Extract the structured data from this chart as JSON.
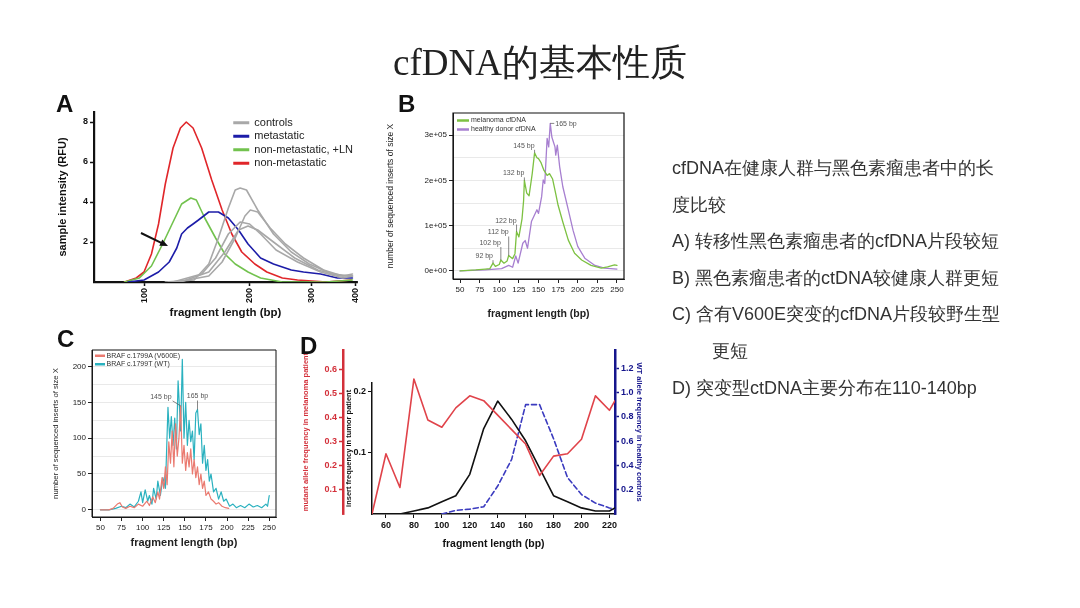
{
  "chart_data": [
    {
      "type": "other",
      "title": "cfDNA的基本性质"
    },
    {
      "type": "line",
      "title": "A",
      "xlabel": "fragment length (bp)",
      "ylabel": "sample intensity (RFU)",
      "log": "x",
      "xlim": [
        72,
        405
      ],
      "xticks": [
        100,
        200,
        300,
        400
      ],
      "ylim": [
        0,
        8.5
      ],
      "yticks": [
        2,
        4,
        6,
        8
      ],
      "legend": "top right",
      "series": [
        {
          "name": "controls",
          "color": "#a8a8a8",
          "x": [
            115,
            139,
            153,
            163,
            174,
            182,
            188,
            196,
            211,
            234,
            263,
            296,
            344,
            393
          ],
          "values": [
            0,
            0.1,
            0.9,
            2.2,
            3.7,
            4.6,
            4.7,
            4.6,
            3.6,
            2.4,
            1.5,
            0.9,
            0.4,
            0.3
          ]
        },
        {
          "color": "#a8a8a8",
          "x": [
            124,
            153,
            167,
            182,
            194,
            201,
            211,
            229,
            253,
            285,
            325,
            369,
            393
          ],
          "values": [
            0,
            0.3,
            1,
            2.2,
            3.3,
            3.6,
            3.5,
            2.7,
            1.9,
            1.2,
            0.6,
            0.3,
            0.4
          ]
        },
        {
          "color": "#a8a8a8",
          "x": [
            121,
            146,
            160,
            174,
            188,
            200,
            215,
            238,
            274,
            319,
            369,
            393
          ],
          "values": [
            0,
            0.4,
            1.2,
            2.4,
            3,
            2.9,
            2.4,
            1.6,
            1,
            0.5,
            0.2,
            0.3
          ]
        },
        {
          "color": "#a8a8a8",
          "x": [
            127,
            153,
            170,
            186,
            198,
            211,
            234,
            269,
            313,
            363,
            393
          ],
          "values": [
            0,
            0.5,
            1.5,
            2.6,
            2.8,
            2.6,
            2,
            1.2,
            0.6,
            0.3,
            0.3
          ]
        },
        {
          "name": "metastatic",
          "color": "#1c1ca8",
          "x": [
            90,
            100,
            110,
            118,
            124,
            128,
            133,
            138,
            143,
            153,
            163,
            174,
            186,
            198,
            215,
            234,
            263,
            285,
            319,
            356,
            393
          ],
          "values": [
            0,
            0.1,
            0.5,
            1,
            1.7,
            2.4,
            2.7,
            2.9,
            3.1,
            3.5,
            3.5,
            3.2,
            2.6,
            1.9,
            1.2,
            0.9,
            0.6,
            0.5,
            0.4,
            0.2,
            0.2
          ]
        },
        {
          "name": "non-metastatic, +LN",
          "color": "#72c24e",
          "x": [
            88,
            97,
            105,
            113,
            121,
            128,
            136,
            141,
            149,
            160,
            170,
            182,
            198,
            215,
            248,
            330,
            393
          ],
          "values": [
            0,
            0.2,
            0.8,
            1.9,
            3,
            3.9,
            4.2,
            4.1,
            3.2,
            2.2,
            1.4,
            0.9,
            0.5,
            0.2,
            0,
            0,
            0.1
          ]
        },
        {
          "name": "non-metastatic",
          "color": "#e0262a",
          "x": [
            88,
            95,
            100,
            105,
            110,
            115,
            121,
            127,
            132,
            138,
            146,
            156,
            167,
            178,
            190,
            207,
            224,
            248,
            274,
            331,
            390
          ],
          "values": [
            0,
            0.2,
            0.5,
            1.4,
            2.9,
            4.9,
            6.7,
            7.7,
            8,
            7.7,
            6.7,
            5.1,
            3.6,
            2.4,
            1.5,
            0.9,
            0.5,
            0.2,
            0.1,
            0,
            0.1
          ]
        }
      ]
    },
    {
      "type": "line",
      "title": "B",
      "xlabel": "fragment length (bp)",
      "ylabel": "number of sequenced inserts of size X",
      "xlim": [
        41,
        259
      ],
      "xticks": [
        50,
        75,
        100,
        125,
        150,
        175,
        200,
        225,
        250
      ],
      "ylim": [
        -18000,
        349000
      ],
      "yticks": [
        {
          "value": 0,
          "label": "0e+00"
        },
        {
          "value": 50000,
          "label": null
        },
        {
          "value": 100000,
          "label": "1e+05"
        },
        {
          "value": 150000,
          "label": null
        },
        {
          "value": 200000,
          "label": "2e+05"
        },
        {
          "value": 250000,
          "label": null
        },
        {
          "value": 300000,
          "label": "3e+05"
        }
      ],
      "grid": "y",
      "legend": "top left",
      "annotations": [
        {
          "text": "92 bp",
          "x": 92,
          "y": 17000
        },
        {
          "text": "102 bp",
          "x": 102,
          "y": 24000
        },
        {
          "text": "112 bp",
          "x": 112,
          "y": 34000
        },
        {
          "text": "122 bp",
          "x": 122,
          "y": 87000
        },
        {
          "text": "132 bp",
          "x": 132,
          "y": 200000
        },
        {
          "text": "145 bp",
          "x": 145,
          "y": 261000
        },
        {
          "text": "165 bp",
          "x": 165,
          "y": 326000
        }
      ],
      "series": [
        {
          "name": "melanoma cfDNA",
          "color": "#7dc142",
          "x": [
            50,
            70,
            82,
            88,
            92,
            95,
            100,
            102,
            106,
            110,
            112,
            117,
            120,
            122,
            125,
            129,
            131,
            132,
            135,
            138,
            142,
            145,
            148,
            150,
            153,
            157,
            161,
            164,
            168,
            172,
            175,
            181,
            188,
            196,
            205,
            217,
            230,
            238,
            247,
            250
          ],
          "values": [
            0,
            2000,
            4000,
            5000,
            17000,
            10000,
            14000,
            24000,
            17000,
            22000,
            34000,
            27000,
            38000,
            87000,
            75000,
            115000,
            155000,
            200000,
            172000,
            166000,
            215000,
            261000,
            250000,
            248000,
            240000,
            222000,
            211000,
            215000,
            203000,
            170000,
            145000,
            108000,
            68000,
            39000,
            24000,
            12000,
            6000,
            9000,
            13000,
            12000
          ]
        },
        {
          "name": "healthy donor cfDNA",
          "color": "#a77fd0",
          "x": [
            50,
            82,
            103,
            112,
            117,
            121,
            124,
            130,
            133,
            136,
            141,
            144,
            148,
            150,
            154,
            156,
            158,
            161,
            163,
            165,
            167,
            169,
            171,
            172,
            174,
            177,
            181,
            188,
            194,
            200,
            209,
            222,
            234,
            250
          ],
          "values": [
            0,
            2000,
            5000,
            12000,
            8000,
            33000,
            17000,
            61000,
            67000,
            50000,
            109000,
            120000,
            135000,
            127000,
            164000,
            201000,
            193000,
            293000,
            274000,
            326000,
            296000,
            285000,
            274000,
            256000,
            278000,
            230000,
            186000,
            135000,
            90000,
            54000,
            28000,
            12000,
            6000,
            4000
          ]
        }
      ]
    },
    {
      "type": "other",
      "annotations": [
        "cfDNA在健康人群与黑色素瘤患者中的长度比较",
        "A) 转移性黑色素瘤患者的cfDNA片段较短",
        "B) 黑色素瘤患者的ctDNA较健康人群更短",
        "C) 含有V600E突变的cfDNA片段较野生型更短",
        "D) 突变型ctDNA主要分布在110-140bp"
      ]
    },
    {
      "type": "line",
      "title": "C",
      "xlabel": "fragment length (bp)",
      "ylabel": "number of sequenced inserts of size X",
      "xlim": [
        40,
        258
      ],
      "xticks": [
        50,
        75,
        100,
        125,
        150,
        175,
        200,
        225,
        250
      ],
      "ylim": [
        -10,
        223
      ],
      "yticks": [
        0,
        {
          "value": 25,
          "label": null
        },
        50,
        {
          "value": 75,
          "label": null
        },
        100,
        {
          "value": 125,
          "label": null
        },
        150,
        {
          "value": 175,
          "label": null
        },
        200
      ],
      "grid": "y",
      "legend": "top left",
      "annotations": [
        {
          "text": "145 bp",
          "x": 145,
          "y": 145
        },
        {
          "text": "165 bp",
          "x": 165,
          "y": 140
        }
      ],
      "series": [
        {
          "name": "BRAF c.1799A (V600E)",
          "color": "#ea7a70",
          "x": [
            50,
            60,
            65,
            70,
            73,
            76,
            80,
            85,
            90,
            95,
            100,
            105,
            108,
            112,
            115,
            118,
            120,
            123,
            125,
            127,
            129,
            131,
            133,
            135,
            137,
            139,
            141,
            143,
            145,
            147,
            149,
            151,
            153,
            155,
            157,
            159,
            161,
            163,
            165,
            167,
            169,
            171,
            173,
            175,
            178,
            181,
            184,
            187,
            190,
            194,
            198,
            202
          ],
          "values": [
            0,
            0,
            2,
            8,
            10,
            4,
            2,
            5,
            3,
            8,
            5,
            12,
            6,
            18,
            10,
            25,
            15,
            45,
            30,
            60,
            35,
            95,
            65,
            110,
            60,
            120,
            75,
            100,
            145,
            65,
            90,
            55,
            80,
            60,
            85,
            50,
            70,
            45,
            60,
            35,
            50,
            30,
            40,
            20,
            25,
            15,
            12,
            8,
            10,
            5,
            3,
            2
          ]
        },
        {
          "name": "BRAF c.1799T (WT)",
          "color": "#2ab1bf",
          "x": [
            50,
            60,
            68,
            75,
            80,
            85,
            90,
            95,
            98,
            100,
            103,
            106,
            108,
            111,
            113,
            116,
            118,
            121,
            124,
            127,
            130,
            132,
            134,
            136,
            138,
            140,
            142,
            145,
            147,
            149,
            151,
            153,
            155,
            157,
            159,
            161,
            163,
            165,
            167,
            169,
            171,
            173,
            175,
            177,
            179,
            181,
            184,
            187,
            190,
            193,
            196,
            199,
            203,
            207,
            211,
            216,
            221,
            226,
            231,
            236,
            241,
            246,
            248,
            250
          ],
          "values": [
            0,
            0,
            2,
            5,
            3,
            8,
            4,
            12,
            25,
            10,
            28,
            12,
            20,
            8,
            30,
            15,
            40,
            20,
            45,
            30,
            143,
            100,
            130,
            90,
            128,
            85,
            180,
            110,
            210,
            100,
            150,
            90,
            125,
            95,
            110,
            70,
            135,
            140,
            105,
            120,
            65,
            90,
            55,
            70,
            40,
            50,
            25,
            30,
            15,
            25,
            12,
            15,
            5,
            8,
            3,
            6,
            3,
            8,
            4,
            6,
            3,
            8,
            5,
            20
          ]
        }
      ]
    },
    {
      "type": "line",
      "title": "D",
      "xlabel": "fragment length (bp)",
      "ylabel": "mutant allele frequency in melanoma patient",
      "y2label": "WT allele frequency in healthy controls",
      "y3label": "insert frequency in tumor patient",
      "xlim": [
        50,
        224
      ],
      "xticks": [
        60,
        80,
        100,
        120,
        140,
        160,
        180,
        200,
        220
      ],
      "ylim": [
        0,
        0.68
      ],
      "yticks": [
        0.1,
        0.2,
        0.3,
        0.4,
        0.5,
        0.6
      ],
      "y2lim": [
        0,
        1.35
      ],
      "y2ticks": [
        0.2,
        0.4,
        0.6,
        0.8,
        {
          "value": 1,
          "label": "1.0"
        },
        1.2
      ],
      "y3lim": [
        0,
        0.215
      ],
      "y3ticks": [
        0.1,
        0.2
      ],
      "series": [
        {
          "color": "#e0434a",
          "x": [
            50,
            60,
            70,
            80,
            90,
            100,
            110,
            120,
            130,
            140,
            150,
            160,
            170,
            180,
            190,
            200,
            210,
            220,
            224
          ],
          "values": [
            0,
            0.25,
            0.11,
            0.56,
            0.39,
            0.36,
            0.44,
            0.49,
            0.47,
            0.41,
            0.35,
            0.29,
            0.16,
            0.24,
            0.25,
            0.31,
            0.49,
            0.43,
            0.47
          ]
        },
        {
          "color": "#111111",
          "axis": "y3",
          "x": [
            50,
            60,
            70,
            80,
            90,
            100,
            110,
            120,
            130,
            140,
            150,
            160,
            170,
            180,
            190,
            200,
            210,
            220,
            224
          ],
          "values": [
            0,
            0,
            0,
            0.005,
            0.01,
            0.02,
            0.03,
            0.065,
            0.14,
            0.185,
            0.155,
            0.12,
            0.075,
            0.03,
            0.02,
            0.01,
            0.005,
            0.005,
            0.01
          ]
        },
        {
          "color": "#3b3bbf",
          "axis": "y2",
          "line_style": "dashed",
          "x": [
            100,
            110,
            120,
            130,
            140,
            150,
            160,
            170,
            180,
            190,
            200,
            210,
            220,
            224
          ],
          "values": [
            0,
            0.03,
            0.04,
            0.06,
            0.23,
            0.45,
            0.9,
            0.9,
            0.62,
            0.3,
            0.16,
            0.09,
            0.05,
            0.04
          ]
        }
      ]
    }
  ]
}
